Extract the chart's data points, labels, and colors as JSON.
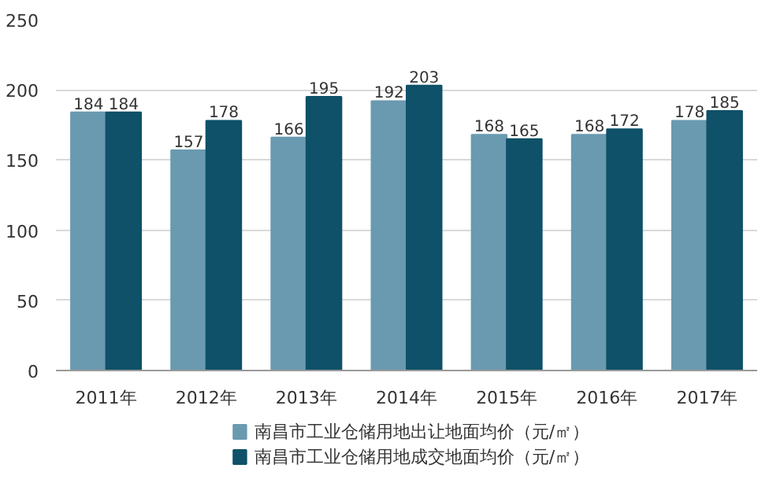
{
  "chart_data": {
    "type": "bar",
    "categories": [
      "2011年",
      "2012年",
      "2013年",
      "2014年",
      "2015年",
      "2016年",
      "2017年"
    ],
    "series": [
      {
        "name": "南昌市工业仓储用地出让地面均价（元/㎡）",
        "color": "#6a9ab0",
        "values": [
          184,
          157,
          166,
          192,
          168,
          168,
          178
        ]
      },
      {
        "name": "南昌市工业仓储用地成交地面均价（元/㎡）",
        "color": "#0e5168",
        "values": [
          184,
          178,
          195,
          203,
          165,
          172,
          185
        ]
      }
    ],
    "ylim": [
      0,
      250
    ],
    "yticks": [
      0,
      50,
      100,
      150,
      200,
      250
    ],
    "grid": "y",
    "legend": "bottom",
    "data_labels": true
  }
}
